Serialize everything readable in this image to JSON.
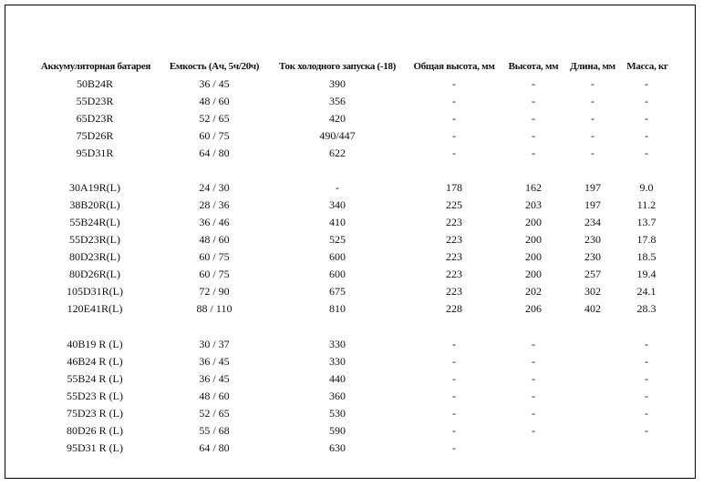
{
  "headers": [
    "Аккумуляторная батарея",
    "Емкость (Ач, 5ч/20ч)",
    "Ток холодного запуска (-18)",
    "Общая высота, мм",
    "Высота, мм",
    "Длина, мм",
    "Масса, кг"
  ],
  "groups": [
    [
      [
        "50B24R",
        "36 / 45",
        "390",
        "-",
        "-",
        "-",
        "-"
      ],
      [
        "55D23R",
        "48 / 60",
        "356",
        "-",
        "-",
        "-",
        "-"
      ],
      [
        "65D23R",
        "52 / 65",
        "420",
        "-",
        "-",
        "-",
        "-"
      ],
      [
        "75D26R",
        "60 / 75",
        "490/447",
        "-",
        "-",
        "-",
        "-"
      ],
      [
        "95D31R",
        "64 / 80",
        "622",
        "-",
        "-",
        "-",
        "-"
      ]
    ],
    [
      [
        "30A19R(L)",
        "24 / 30",
        "-",
        "178",
        "162",
        "197",
        "9.0"
      ],
      [
        "38B20R(L)",
        "28 / 36",
        "340",
        "225",
        "203",
        "197",
        "11.2"
      ],
      [
        "55B24R(L)",
        "36 / 46",
        "410",
        "223",
        "200",
        "234",
        "13.7"
      ],
      [
        "55D23R(L)",
        "48 / 60",
        "525",
        "223",
        "200",
        "230",
        "17.8"
      ],
      [
        "80D23R(L)",
        "60 / 75",
        "600",
        "223",
        "200",
        "230",
        "18.5"
      ],
      [
        "80D26R(L)",
        "60 / 75",
        "600",
        "223",
        "200",
        "257",
        "19.4"
      ],
      [
        "105D31R(L)",
        "72 / 90",
        "675",
        "223",
        "202",
        "302",
        "24.1"
      ],
      [
        "120E41R(L)",
        "88 / 110",
        "810",
        "228",
        "206",
        "402",
        "28.3"
      ]
    ],
    [
      [
        "40B19 R (L)",
        "30 / 37",
        "330",
        "-",
        "-",
        "",
        "-"
      ],
      [
        "46B24 R (L)",
        "36 / 45",
        "330",
        "-",
        "-",
        "",
        "-"
      ],
      [
        "55B24 R (L)",
        "36 / 45",
        "440",
        "-",
        "-",
        "",
        "-"
      ],
      [
        "55D23 R (L)",
        "48 / 60",
        "360",
        "-",
        "-",
        "",
        "-"
      ],
      [
        "75D23 R (L)",
        "52 / 65",
        "530",
        "-",
        "-",
        "",
        "-"
      ],
      [
        "80D26 R (L)",
        "55 / 68",
        "590",
        "-",
        "-",
        "",
        "-"
      ],
      [
        "95D31 R (L)",
        "64 / 80",
        "630",
        "-",
        "",
        "",
        ""
      ]
    ]
  ]
}
